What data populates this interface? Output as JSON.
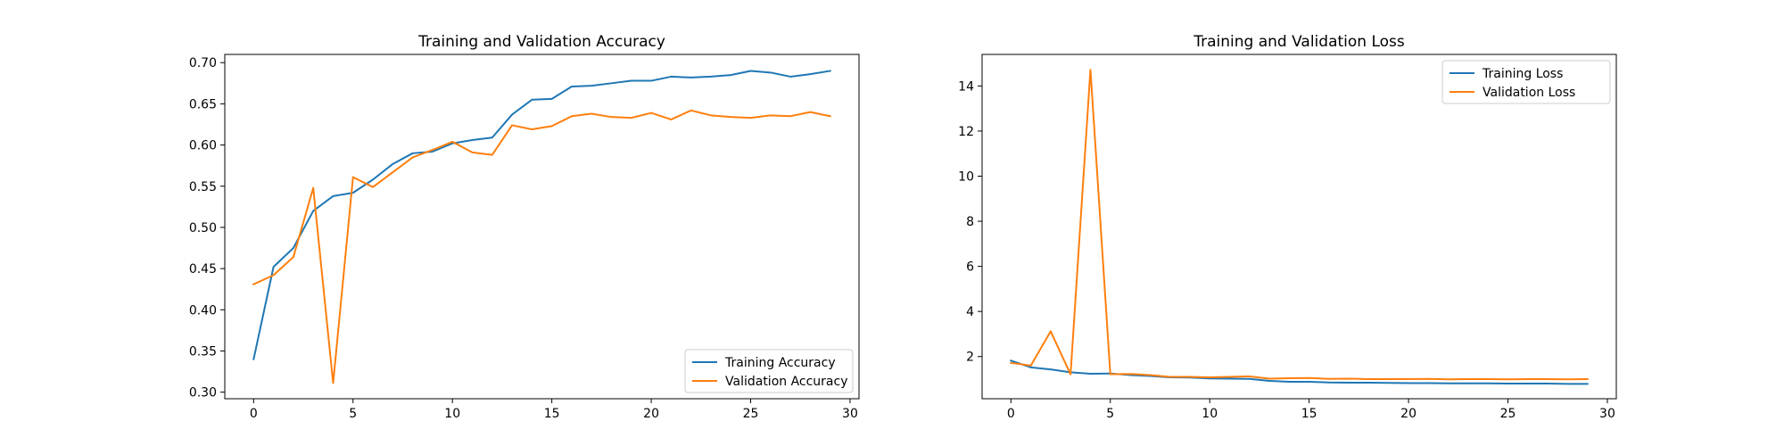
{
  "chart_data": [
    {
      "type": "line",
      "title": "Training and Validation Accuracy",
      "xlabel": "",
      "ylabel": "",
      "xlim": [
        -1.45,
        30.45
      ],
      "ylim": [
        0.292,
        0.71
      ],
      "xticks": [
        0,
        5,
        10,
        15,
        20,
        25,
        30
      ],
      "yticks": [
        0.3,
        0.35,
        0.4,
        0.45,
        0.5,
        0.55,
        0.6,
        0.65,
        0.7
      ],
      "ytick_labels": [
        "0.30",
        "0.35",
        "0.40",
        "0.45",
        "0.50",
        "0.55",
        "0.60",
        "0.65",
        "0.70"
      ],
      "grid": false,
      "legend_position": "lower right",
      "x": [
        0,
        1,
        2,
        3,
        4,
        5,
        6,
        7,
        8,
        9,
        10,
        11,
        12,
        13,
        14,
        15,
        16,
        17,
        18,
        19,
        20,
        21,
        22,
        23,
        24,
        25,
        26,
        27,
        28,
        29
      ],
      "series": [
        {
          "name": "Training Accuracy",
          "color": "#1f77b4",
          "values": [
            0.34,
            0.452,
            0.475,
            0.52,
            0.538,
            0.542,
            0.558,
            0.577,
            0.59,
            0.592,
            0.602,
            0.606,
            0.609,
            0.637,
            0.655,
            0.656,
            0.671,
            0.672,
            0.675,
            0.678,
            0.678,
            0.683,
            0.682,
            0.683,
            0.685,
            0.69,
            0.688,
            0.683,
            0.686,
            0.69
          ]
        },
        {
          "name": "Validation Accuracy",
          "color": "#ff7f0e",
          "values": [
            0.431,
            0.442,
            0.464,
            0.548,
            0.311,
            0.561,
            0.549,
            0.567,
            0.585,
            0.594,
            0.604,
            0.591,
            0.588,
            0.624,
            0.619,
            0.623,
            0.635,
            0.638,
            0.634,
            0.633,
            0.639,
            0.631,
            0.642,
            0.636,
            0.634,
            0.633,
            0.636,
            0.635,
            0.64,
            0.635
          ]
        }
      ]
    },
    {
      "type": "line",
      "title": "Training and Validation Loss",
      "xlabel": "",
      "ylabel": "",
      "xlim": [
        -1.45,
        30.45
      ],
      "ylim": [
        0.13,
        15.4
      ],
      "xticks": [
        0,
        5,
        10,
        15,
        20,
        25,
        30
      ],
      "yticks": [
        2,
        4,
        6,
        8,
        10,
        12,
        14
      ],
      "ytick_labels": [
        "2",
        "4",
        "6",
        "8",
        "10",
        "12",
        "14"
      ],
      "grid": false,
      "legend_position": "upper right",
      "x": [
        0,
        1,
        2,
        3,
        4,
        5,
        6,
        7,
        8,
        9,
        10,
        11,
        12,
        13,
        14,
        15,
        16,
        17,
        18,
        19,
        20,
        21,
        22,
        23,
        24,
        25,
        26,
        27,
        28,
        29
      ],
      "series": [
        {
          "name": "Training Loss",
          "color": "#1f77b4",
          "values": [
            1.82,
            1.52,
            1.43,
            1.3,
            1.24,
            1.25,
            1.18,
            1.14,
            1.08,
            1.07,
            1.03,
            1.02,
            1.01,
            0.92,
            0.88,
            0.88,
            0.85,
            0.84,
            0.84,
            0.83,
            0.82,
            0.82,
            0.81,
            0.81,
            0.81,
            0.8,
            0.8,
            0.8,
            0.79,
            0.79
          ]
        },
        {
          "name": "Validation Loss",
          "color": "#ff7f0e",
          "values": [
            1.72,
            1.6,
            3.12,
            1.21,
            14.72,
            1.22,
            1.23,
            1.18,
            1.1,
            1.1,
            1.08,
            1.1,
            1.12,
            1.02,
            1.04,
            1.05,
            1.01,
            1.02,
            1.0,
            1.0,
            1.0,
            1.01,
            0.99,
            1.0,
            1.0,
            0.99,
            1.0,
            1.0,
            0.99,
            1.0
          ]
        }
      ]
    }
  ]
}
